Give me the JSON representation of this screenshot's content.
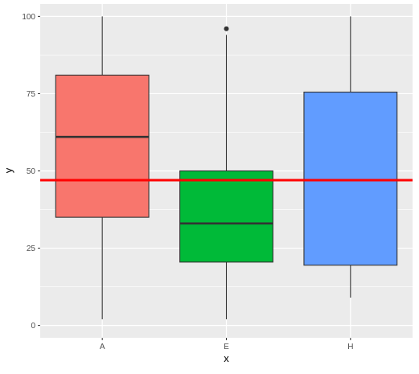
{
  "chart_data": {
    "type": "boxplot",
    "title": "",
    "xlabel": "x",
    "ylabel": "y",
    "ylim": [
      -4,
      104
    ],
    "yticks": [
      0,
      25,
      50,
      75,
      100
    ],
    "ytick_labels": [
      "0",
      "25",
      "50",
      "75",
      "100"
    ],
    "categories": [
      "A",
      "E",
      "H"
    ],
    "boxes": [
      {
        "category": "A",
        "whisker_low": 2,
        "q1": 35,
        "median": 61,
        "q3": 81,
        "whisker_high": 100,
        "outliers": [],
        "fill": "#F8766D"
      },
      {
        "category": "E",
        "whisker_low": 2,
        "q1": 20.5,
        "median": 33,
        "q3": 50,
        "whisker_high": 94,
        "outliers": [
          96
        ],
        "fill": "#00BA38"
      },
      {
        "category": "H",
        "whisker_low": 9,
        "q1": 19.5,
        "median": 47,
        "q3": 75.5,
        "whisker_high": 100,
        "outliers": [],
        "fill": "#619CFF"
      }
    ],
    "reference_line": {
      "y": 47,
      "color": "#FF0000"
    },
    "grid": true,
    "panel_background": "#EBEBEB",
    "grid_color": "#FFFFFF",
    "box_outline_color": "#333333",
    "legend": "none"
  }
}
